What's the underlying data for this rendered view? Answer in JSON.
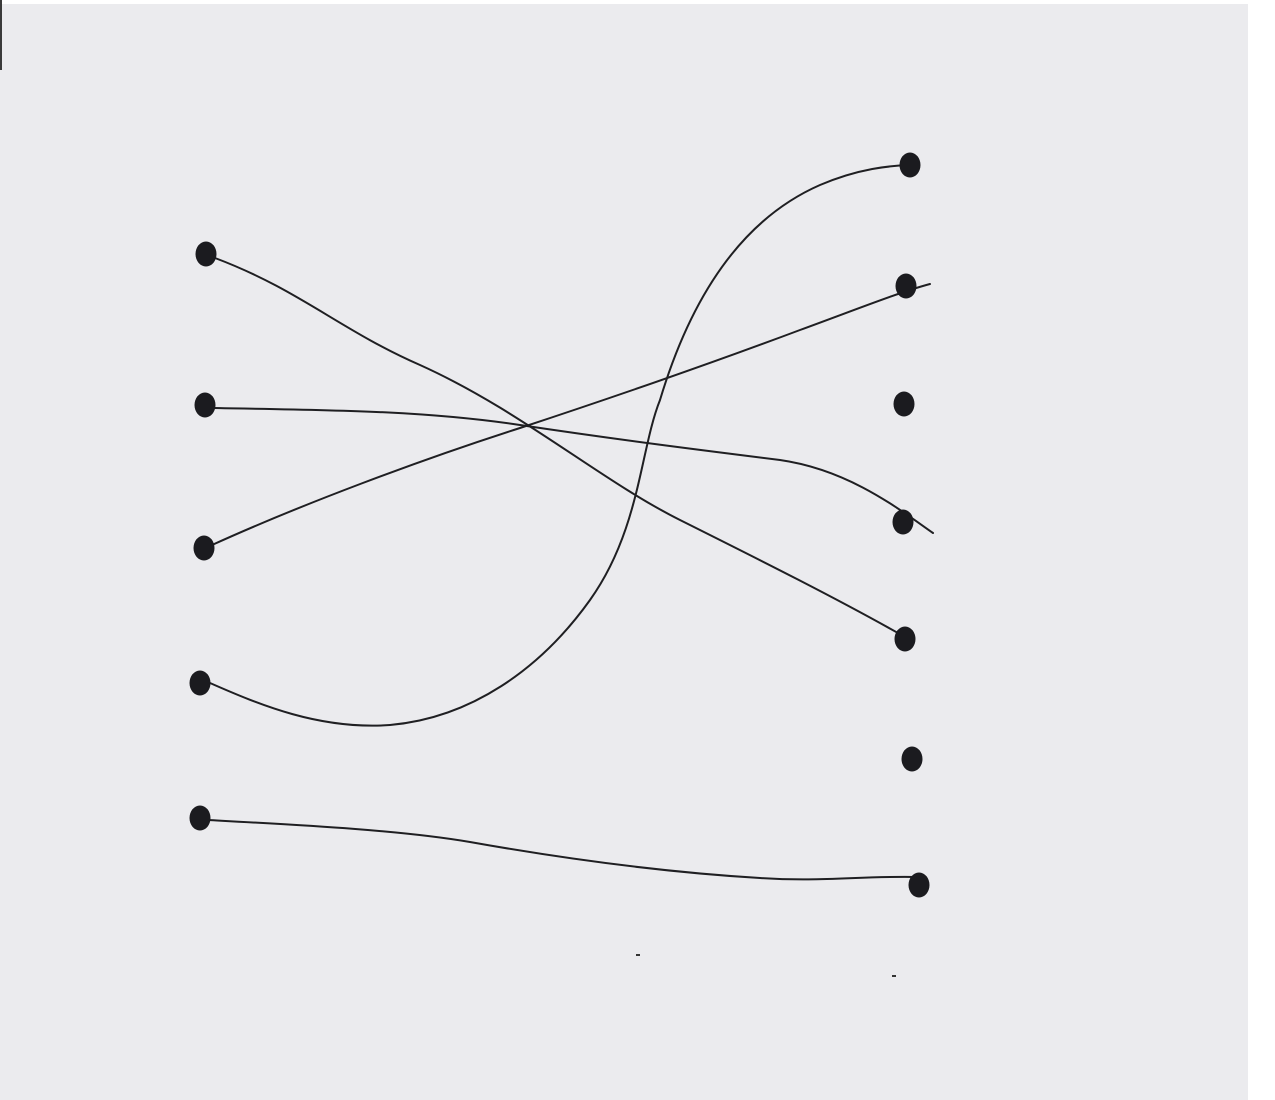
{
  "diagram": {
    "type": "matching",
    "description_style": "hand-drawn on paper",
    "colors": {
      "paper": "#ebebee",
      "ink": "#1b1b1f",
      "scan_edge": "#ffffff"
    },
    "left_nodes": [
      {
        "id": "L1"
      },
      {
        "id": "L2"
      },
      {
        "id": "L3"
      },
      {
        "id": "L4"
      },
      {
        "id": "L5"
      }
    ],
    "right_nodes": [
      {
        "id": "R1"
      },
      {
        "id": "R2"
      },
      {
        "id": "R3"
      },
      {
        "id": "R4"
      },
      {
        "id": "R5"
      },
      {
        "id": "R6"
      },
      {
        "id": "R7"
      }
    ],
    "connections": [
      {
        "from": "L1",
        "to": "R5"
      },
      {
        "from": "L2",
        "to": "R4"
      },
      {
        "from": "L3",
        "to": "R2"
      },
      {
        "from": "L4",
        "to": "R1"
      },
      {
        "from": "L5",
        "to": "R7"
      }
    ],
    "unconnected": [
      "R3",
      "R6"
    ]
  }
}
